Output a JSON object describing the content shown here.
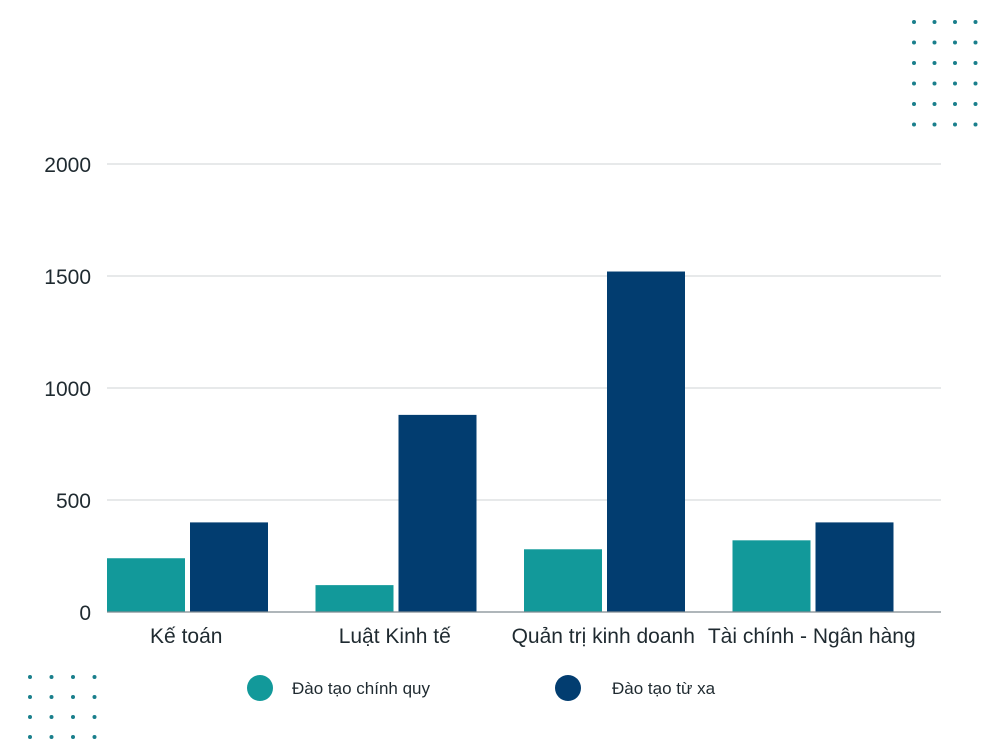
{
  "colors": {
    "series_regular": "#12999a",
    "series_distance": "#023d70",
    "grid": "#cfd3d6",
    "axis": "#7f8a90",
    "decor_dots": "#1a7f8c"
  },
  "chart_data": {
    "type": "bar",
    "title": "",
    "xlabel": "",
    "ylabel": "",
    "categories": [
      "Kế toán",
      "Luật Kinh tế",
      "Quản trị kinh doanh",
      "Tài chính - Ngân hàng"
    ],
    "series": [
      {
        "name": "Đào tạo chính quy",
        "values": [
          240,
          120,
          280,
          320
        ]
      },
      {
        "name": "Đào tạo từ xa",
        "values": [
          400,
          880,
          1520,
          400
        ]
      }
    ],
    "ylim": [
      0,
      2000
    ],
    "yticks": [
      "0",
      "500",
      "1000",
      "1500",
      "2000"
    ],
    "grid": true,
    "legend": "bottom"
  },
  "decorations": {
    "dot_grid_top_right": "dots-pattern",
    "dot_grid_bottom_left": "dots-pattern"
  }
}
